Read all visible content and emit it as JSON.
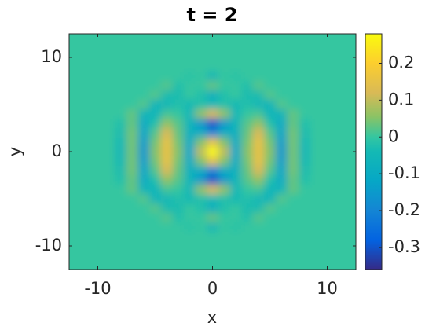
{
  "chart_data": {
    "type": "heatmap",
    "title": "t = 2",
    "x_label": "x",
    "y_label": "y",
    "colormap": "parula",
    "x": [
      -12,
      -11,
      -10,
      -9,
      -8,
      -7,
      -6,
      -5,
      -4,
      -3,
      -2,
      -1,
      0,
      1,
      2,
      3,
      4,
      5,
      6,
      7,
      8,
      9,
      10,
      11,
      12
    ],
    "y": [
      12,
      11,
      10,
      9,
      8,
      7,
      6,
      5,
      4,
      3,
      2,
      1,
      0,
      -1,
      -2,
      -3,
      -4,
      -5,
      -6,
      -7,
      -8,
      -9,
      -10,
      -11,
      -12
    ],
    "values": [
      [
        0,
        0,
        0,
        0,
        0,
        0,
        0,
        0,
        0,
        0,
        0,
        0,
        0,
        0,
        0,
        0,
        0,
        0,
        0,
        0,
        0,
        0,
        0,
        0,
        0
      ],
      [
        0,
        0,
        0,
        0,
        0,
        0,
        0,
        0,
        0,
        0,
        0,
        0,
        0,
        0,
        0,
        0,
        0,
        0,
        0,
        0,
        0,
        0,
        0,
        0,
        0
      ],
      [
        0,
        0,
        0,
        0,
        0,
        0,
        0,
        0,
        0,
        0,
        0,
        0,
        0,
        0,
        0,
        0,
        0,
        0,
        0,
        0,
        0,
        0,
        0,
        0,
        0
      ],
      [
        0,
        0,
        0,
        0,
        0,
        0,
        0,
        0,
        0,
        0,
        0,
        0,
        0,
        0,
        0,
        0,
        0,
        0,
        0,
        0,
        0,
        0,
        0,
        0,
        0
      ],
      [
        0,
        0,
        0,
        0,
        0,
        0,
        0,
        0,
        0,
        0,
        -0.01,
        0,
        -0.05,
        0,
        -0.01,
        0,
        0,
        0,
        0,
        0,
        0,
        0,
        0,
        0,
        0
      ],
      [
        0,
        0,
        0,
        0,
        0,
        0,
        0,
        0,
        0.02,
        -0.02,
        0,
        0,
        0.03,
        0,
        0,
        -0.02,
        0.02,
        0,
        0,
        0,
        0,
        0,
        0,
        0,
        0
      ],
      [
        0,
        0,
        0,
        0,
        0,
        0,
        0,
        0.02,
        -0.03,
        -0.03,
        0,
        -0.02,
        -0.08,
        -0.02,
        0,
        -0.03,
        -0.03,
        0.02,
        0,
        0,
        0,
        0,
        0,
        0,
        0
      ],
      [
        0,
        0,
        0,
        0,
        0,
        0,
        0.02,
        -0.06,
        -0.05,
        -0.02,
        -0.04,
        -0.02,
        -0.05,
        -0.02,
        -0.04,
        -0.02,
        -0.05,
        -0.06,
        0.02,
        0,
        0,
        0,
        0,
        0,
        0
      ],
      [
        0,
        0,
        0,
        0,
        0,
        0.03,
        -0.06,
        -0.06,
        0.01,
        0,
        -0.05,
        0.06,
        0.12,
        0.06,
        -0.05,
        0,
        0.01,
        -0.06,
        -0.06,
        0.03,
        0,
        0,
        0,
        0,
        0
      ],
      [
        0,
        0,
        0,
        0,
        -0.02,
        0.03,
        -0.1,
        -0.02,
        0.06,
        0.02,
        -0.06,
        -0.15,
        -0.3,
        -0.15,
        -0.06,
        0.02,
        0.06,
        -0.02,
        -0.1,
        0.03,
        -0.02,
        0,
        0,
        0,
        0
      ],
      [
        0,
        0,
        0,
        0,
        -0.03,
        0.04,
        -0.12,
        0.02,
        0.12,
        0.03,
        -0.08,
        -0.1,
        -0.2,
        -0.1,
        -0.08,
        0.03,
        0.12,
        0.02,
        -0.12,
        0.04,
        -0.03,
        0,
        0,
        0,
        0
      ],
      [
        0,
        0,
        0,
        0,
        -0.04,
        0.04,
        -0.14,
        0.04,
        0.15,
        0.04,
        -0.1,
        0.05,
        0.15,
        0.05,
        -0.1,
        0.04,
        0.15,
        0.04,
        -0.14,
        0.04,
        -0.04,
        0,
        0,
        0,
        0
      ],
      [
        0,
        0,
        0,
        0,
        -0.05,
        0.04,
        -0.15,
        0.05,
        0.15,
        0.05,
        -0.12,
        0.1,
        0.28,
        0.1,
        -0.12,
        0.05,
        0.15,
        0.05,
        -0.15,
        0.04,
        -0.05,
        0,
        0,
        0,
        0
      ],
      [
        0,
        0,
        0,
        0,
        -0.04,
        0.04,
        -0.14,
        0.04,
        0.15,
        0.04,
        -0.1,
        0.05,
        0.15,
        0.05,
        -0.1,
        0.04,
        0.15,
        0.04,
        -0.14,
        0.04,
        -0.04,
        0,
        0,
        0,
        0
      ],
      [
        0,
        0,
        0,
        0,
        -0.03,
        0.04,
        -0.12,
        0.02,
        0.12,
        0.03,
        -0.08,
        -0.1,
        -0.2,
        -0.1,
        -0.08,
        0.03,
        0.12,
        0.02,
        -0.12,
        0.04,
        -0.03,
        0,
        0,
        0,
        0
      ],
      [
        0,
        0,
        0,
        0,
        -0.02,
        0.03,
        -0.1,
        -0.02,
        0.06,
        0.02,
        -0.06,
        -0.15,
        -0.3,
        -0.15,
        -0.06,
        0.02,
        0.06,
        -0.02,
        -0.1,
        0.03,
        -0.02,
        0,
        0,
        0,
        0
      ],
      [
        0,
        0,
        0,
        0,
        0,
        0.03,
        -0.06,
        -0.06,
        0.01,
        0,
        -0.05,
        0.06,
        0.12,
        0.06,
        -0.05,
        0,
        0.01,
        -0.06,
        -0.06,
        0.03,
        0,
        0,
        0,
        0,
        0
      ],
      [
        0,
        0,
        0,
        0,
        0,
        0,
        0.02,
        -0.06,
        -0.05,
        -0.02,
        -0.04,
        -0.02,
        -0.05,
        -0.02,
        -0.04,
        -0.02,
        -0.05,
        -0.06,
        0.02,
        0,
        0,
        0,
        0,
        0,
        0
      ],
      [
        0,
        0,
        0,
        0,
        0,
        0,
        0,
        0.02,
        -0.03,
        -0.03,
        0,
        -0.02,
        -0.08,
        -0.02,
        0,
        -0.03,
        -0.03,
        0.02,
        0,
        0,
        0,
        0,
        0,
        0,
        0
      ],
      [
        0,
        0,
        0,
        0,
        0,
        0,
        0,
        0,
        0.02,
        -0.02,
        0,
        0,
        0.03,
        0,
        0,
        -0.02,
        0.02,
        0,
        0,
        0,
        0,
        0,
        0,
        0,
        0
      ],
      [
        0,
        0,
        0,
        0,
        0,
        0,
        0,
        0,
        0,
        0,
        -0.01,
        0,
        -0.05,
        0,
        -0.01,
        0,
        0,
        0,
        0,
        0,
        0,
        0,
        0,
        0,
        0
      ],
      [
        0,
        0,
        0,
        0,
        0,
        0,
        0,
        0,
        0,
        0,
        0,
        0,
        0,
        0,
        0,
        0,
        0,
        0,
        0,
        0,
        0,
        0,
        0,
        0,
        0
      ],
      [
        0,
        0,
        0,
        0,
        0,
        0,
        0,
        0,
        0,
        0,
        0,
        0,
        0,
        0,
        0,
        0,
        0,
        0,
        0,
        0,
        0,
        0,
        0,
        0,
        0
      ],
      [
        0,
        0,
        0,
        0,
        0,
        0,
        0,
        0,
        0,
        0,
        0,
        0,
        0,
        0,
        0,
        0,
        0,
        0,
        0,
        0,
        0,
        0,
        0,
        0,
        0
      ],
      [
        0,
        0,
        0,
        0,
        0,
        0,
        0,
        0,
        0,
        0,
        0,
        0,
        0,
        0,
        0,
        0,
        0,
        0,
        0,
        0,
        0,
        0,
        0,
        0,
        0
      ]
    ],
    "xlim": [
      -12.5,
      12.5
    ],
    "ylim": [
      -12.5,
      12.5
    ],
    "xticks": [
      -10,
      0,
      10
    ],
    "yticks": [
      -10,
      0,
      10
    ],
    "clim": [
      -0.36,
      0.28
    ],
    "cticks": [
      -0.3,
      -0.2,
      -0.1,
      0,
      0.1,
      0.2
    ]
  }
}
